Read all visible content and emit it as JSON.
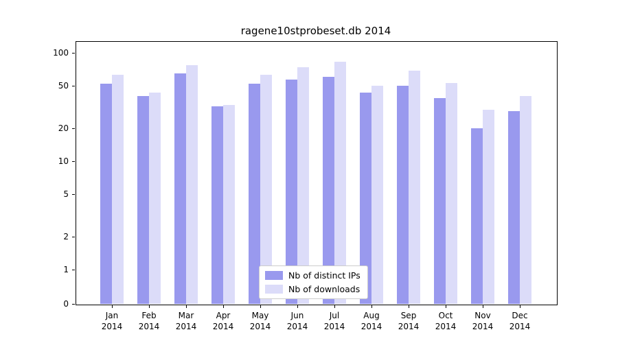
{
  "chart_data": {
    "type": "bar",
    "title": "ragene10stprobeset.db 2014",
    "months": [
      "Jan",
      "Feb",
      "Mar",
      "Apr",
      "May",
      "Jun",
      "Jul",
      "Aug",
      "Sep",
      "Oct",
      "Nov",
      "Dec"
    ],
    "year_label": "2014",
    "series": [
      {
        "name": "Nb of distinct IPs",
        "color": "#9999ee",
        "values": [
          52,
          40,
          65,
          32,
          52,
          57,
          60,
          43,
          50,
          38,
          20,
          29
        ]
      },
      {
        "name": "Nb of downloads",
        "color": "#dcdcf9",
        "values": [
          63,
          43,
          77,
          33,
          63,
          74,
          83,
          50,
          68,
          53,
          30,
          40
        ]
      }
    ],
    "y_ticks": [
      0,
      1,
      2,
      5,
      10,
      20,
      50,
      100
    ],
    "y_minor_ticks": [
      3,
      4,
      6,
      7,
      8,
      9,
      30,
      40,
      60,
      70,
      80,
      90
    ],
    "scale": "symlog",
    "ylim": [
      0,
      130
    ],
    "grid": "on",
    "legend_position": "bottom-center",
    "xlabel": "",
    "ylabel": ""
  }
}
